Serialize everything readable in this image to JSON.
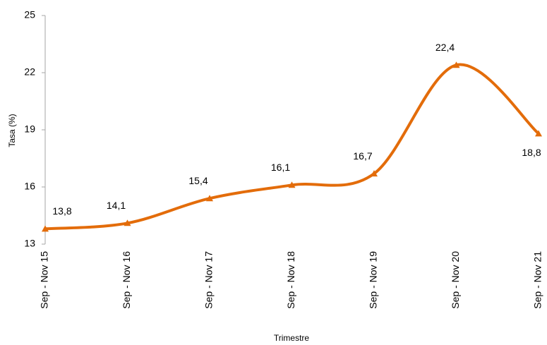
{
  "chart_data": {
    "type": "line",
    "smooth": true,
    "x_label": "Trimestre",
    "y_label": "Tasa (%)",
    "categories": [
      "Sep - Nov 15",
      "Sep - Nov 16",
      "Sep - Nov 17",
      "Sep - Nov 18",
      "Sep - Nov 19",
      "Sep - Nov 20",
      "Sep - Nov 21"
    ],
    "values": [
      13.8,
      14.1,
      15.4,
      16.1,
      16.7,
      22.4,
      18.8
    ],
    "value_labels": [
      "13,8",
      "14,1",
      "15,4",
      "16,1",
      "16,7",
      "22,4",
      "18,8"
    ],
    "color": "#e36c0a",
    "ylim": [
      13,
      25
    ],
    "yticks": [
      13,
      16,
      19,
      22,
      25
    ]
  }
}
